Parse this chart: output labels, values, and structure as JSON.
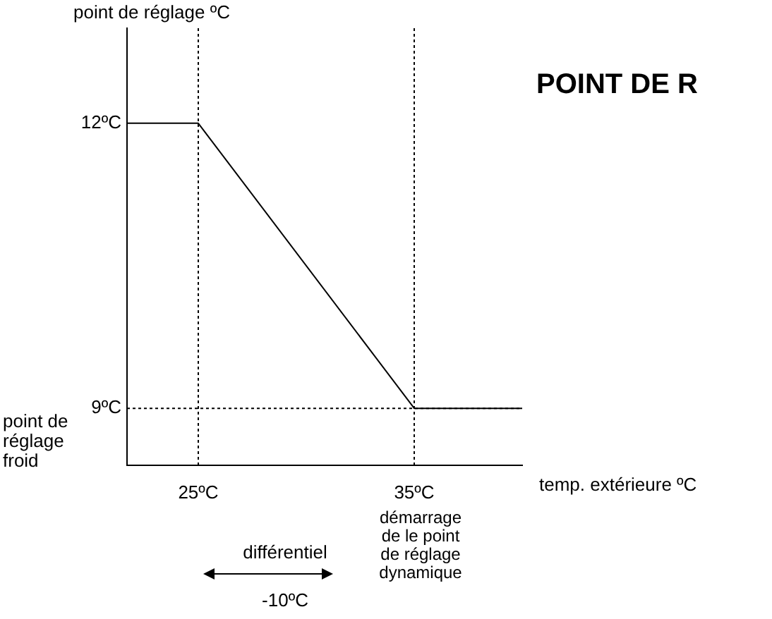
{
  "chart_data": {
    "type": "line",
    "title": "POINT DE R",
    "xlabel": "temp. extérieure ºC",
    "ylabel": "point de réglage ºC",
    "x": [
      21.7,
      25,
      35,
      40
    ],
    "series": [
      {
        "color": "#000000",
        "values": [
          12,
          12,
          9,
          9
        ]
      }
    ],
    "xlim": [
      21.7,
      40
    ],
    "ylim": [
      8.4,
      13
    ],
    "xticks": [
      {
        "value": 25,
        "label": "25ºC"
      },
      {
        "value": 35,
        "label": "35ºC"
      }
    ],
    "yticks": [
      {
        "value": 9,
        "label": "9ºC"
      },
      {
        "value": 12,
        "label": "12ºC"
      }
    ],
    "ref_lines": [
      {
        "axis": "x",
        "value": 25,
        "line_style": "dotted"
      },
      {
        "axis": "x",
        "value": 35,
        "line_style": "dotted"
      },
      {
        "axis": "y",
        "value": 9,
        "line_style": "dotted"
      }
    ],
    "annotations": [
      "point de réglage froid",
      "différentiel",
      "-10ºC",
      "démarrage de le point de réglage dynamique"
    ]
  }
}
